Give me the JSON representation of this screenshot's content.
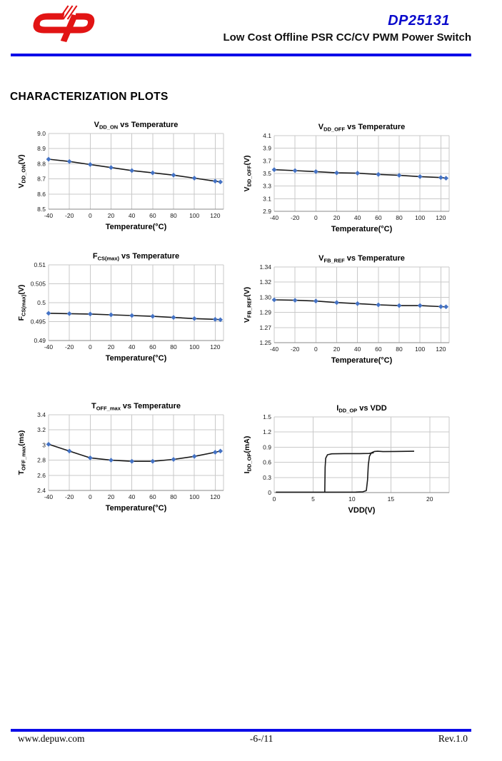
{
  "header": {
    "part_number": "DP25131",
    "subtitle": "Low Cost Offline PSR CC/CV PWM Power Switch",
    "brand_color": "#E21414",
    "accent_blue": "#0D0DE8",
    "part_number_color": "#0A0ACC"
  },
  "section_title": "CHARACTERIZATION PLOTS",
  "footer": {
    "website": "www.depuw.com",
    "page": "-6-/11",
    "revision": "Rev.1.0"
  },
  "chart_style": {
    "marker_color": "#4472C4",
    "line_color": "#1a1a1a",
    "grid_color": "#c9c9c9",
    "axis_color": "#8a8a8a",
    "tick_color": "#1a1a1a"
  },
  "chart_data": [
    {
      "id": "vdd_on",
      "type": "line",
      "name": "VDD_ON vs Temperature",
      "title": [
        {
          "t": "V",
          "s": 0
        },
        {
          "t": "DD_ON",
          "s": 1
        },
        {
          "t": " vs Temperature",
          "s": 0
        }
      ],
      "ylabel": [
        {
          "t": "V",
          "s": 0
        },
        {
          "t": "DD_ON",
          "s": 1
        },
        {
          "t": "(V)",
          "s": 0
        }
      ],
      "xlabel": "Temperature(°C)",
      "xlim": [
        -40,
        128
      ],
      "xticks": [
        -40,
        -20,
        0,
        20,
        40,
        60,
        80,
        100,
        120
      ],
      "ytick_values": [
        8.5,
        8.6,
        8.7,
        8.8,
        8.9,
        9.0
      ],
      "ytick_labels": [
        "8.5",
        "8.6",
        "8.7",
        "8.8",
        "8.9",
        "9.0"
      ],
      "series": [
        {
          "markers": true,
          "x": [
            -40,
            -20,
            0,
            20,
            40,
            60,
            80,
            100,
            120,
            125
          ],
          "y": [
            8.83,
            8.815,
            8.795,
            8.775,
            8.755,
            8.74,
            8.725,
            8.705,
            8.685,
            8.68
          ]
        }
      ]
    },
    {
      "id": "vdd_off",
      "type": "line",
      "name": "VDD_OFF vs Temperature",
      "title": [
        {
          "t": "V",
          "s": 0
        },
        {
          "t": "DD_OFF",
          "s": 1
        },
        {
          "t": " vs Temperature",
          "s": 0
        }
      ],
      "ylabel": [
        {
          "t": "V",
          "s": 0
        },
        {
          "t": "DD_OFF",
          "s": 1
        },
        {
          "t": "(V)",
          "s": 0
        }
      ],
      "xlabel": "Temperature(°C)",
      "xlim": [
        -40,
        128
      ],
      "xticks": [
        -40,
        -20,
        0,
        20,
        40,
        60,
        80,
        100,
        120
      ],
      "ytick_values": [
        2.9,
        3.1,
        3.3,
        3.5,
        3.7,
        3.9,
        4.1
      ],
      "ytick_labels": [
        "2.9",
        "3.1",
        "3.3",
        "3.5",
        "3.7",
        "3.9",
        "4.1"
      ],
      "series": [
        {
          "markers": true,
          "x": [
            -40,
            -20,
            0,
            20,
            40,
            60,
            80,
            100,
            120,
            125
          ],
          "y": [
            3.56,
            3.545,
            3.53,
            3.51,
            3.505,
            3.485,
            3.47,
            3.45,
            3.435,
            3.425
          ]
        }
      ]
    },
    {
      "id": "fcs_max",
      "type": "line",
      "name": "FCS(max) vs Temperature",
      "title": [
        {
          "t": "F",
          "s": 0
        },
        {
          "t": "CS(max)",
          "s": 1
        },
        {
          "t": " vs Temperature",
          "s": 0
        }
      ],
      "ylabel": [
        {
          "t": "F",
          "s": 0
        },
        {
          "t": "CS(max)",
          "s": 1
        },
        {
          "t": "(V)",
          "s": 0
        }
      ],
      "xlabel": "Temperature(°C)",
      "xlim": [
        -40,
        128
      ],
      "xticks": [
        -40,
        -20,
        0,
        20,
        40,
        60,
        80,
        100,
        120
      ],
      "ytick_values": [
        0.49,
        0.495,
        0.5,
        0.505,
        0.51
      ],
      "ytick_labels": [
        "0.49",
        "0.495",
        "0.5",
        "0.505",
        "0.51"
      ],
      "series": [
        {
          "markers": true,
          "x": [
            -40,
            -20,
            0,
            20,
            40,
            60,
            80,
            100,
            120,
            125
          ],
          "y": [
            0.4972,
            0.4971,
            0.497,
            0.4968,
            0.4966,
            0.4964,
            0.4961,
            0.4958,
            0.4956,
            0.4955
          ]
        }
      ]
    },
    {
      "id": "vfb_ref",
      "type": "line",
      "name": "VFB_REF vs Temperature",
      "title": [
        {
          "t": "V",
          "s": 0
        },
        {
          "t": "FB_REF",
          "s": 1
        },
        {
          "t": " vs Temperature",
          "s": 0
        }
      ],
      "ylabel": [
        {
          "t": "V",
          "s": 0
        },
        {
          "t": "FB_REF",
          "s": 1
        },
        {
          "t": "(V)",
          "s": 0
        }
      ],
      "xlabel": "Temperature(°C)",
      "xlim": [
        -40,
        128
      ],
      "xticks": [
        -40,
        -20,
        0,
        20,
        40,
        60,
        80,
        100,
        120
      ],
      "ytick_values": [
        1.25,
        1.27,
        1.29,
        1.3,
        1.32,
        1.34
      ],
      "ytick_labels": [
        "1.25",
        "1.27",
        "1.29",
        "1.30",
        "1.32",
        "1.34"
      ],
      "series": [
        {
          "markers": true,
          "x": [
            -40,
            -20,
            0,
            20,
            40,
            60,
            80,
            100,
            120,
            125
          ],
          "y": [
            1.2983,
            1.298,
            1.2975,
            1.2965,
            1.2958,
            1.295,
            1.2945,
            1.2945,
            1.2938,
            1.2937
          ]
        }
      ]
    },
    {
      "id": "toff_max",
      "type": "line",
      "name": "TOFF_max vs Temperature",
      "title": [
        {
          "t": "T",
          "s": 0
        },
        {
          "t": "OFF_max",
          "s": 1
        },
        {
          "t": " vs Temperature",
          "s": 0
        }
      ],
      "ylabel": [
        {
          "t": "T",
          "s": 0
        },
        {
          "t": "OFF_max",
          "s": 1
        },
        {
          "t": "(ms)",
          "s": 0
        }
      ],
      "xlabel": "Temperature(°C)",
      "xlim": [
        -40,
        128
      ],
      "xticks": [
        -40,
        -20,
        0,
        20,
        40,
        60,
        80,
        100,
        120
      ],
      "ytick_values": [
        2.4,
        2.6,
        2.8,
        3.0,
        3.2,
        3.4
      ],
      "ytick_labels": [
        "2.4",
        "2.6",
        "2.8",
        "3",
        "3.2",
        "3.4"
      ],
      "series": [
        {
          "markers": true,
          "x": [
            -40,
            -20,
            0,
            20,
            40,
            60,
            80,
            100,
            120,
            125
          ],
          "y": [
            3.01,
            2.92,
            2.83,
            2.8,
            2.785,
            2.785,
            2.81,
            2.85,
            2.905,
            2.92
          ]
        }
      ]
    },
    {
      "id": "idd_op",
      "type": "line",
      "name": "IDD_OP vs VDD",
      "title": [
        {
          "t": "I",
          "s": 0
        },
        {
          "t": "DD_OP",
          "s": 1
        },
        {
          "t": " vs VDD",
          "s": 0
        }
      ],
      "ylabel": [
        {
          "t": "I",
          "s": 0
        },
        {
          "t": "DD_OP",
          "s": 1
        },
        {
          "t": "(mA)",
          "s": 0
        }
      ],
      "xlabel": "VDD(V)",
      "xlim": [
        0,
        22.5
      ],
      "xticks": [
        0,
        5,
        10,
        15,
        20
      ],
      "ytick_values": [
        0,
        0.3,
        0.6,
        0.9,
        1.2,
        1.5
      ],
      "ytick_labels": [
        "0",
        "0.3",
        "0.6",
        "0.9",
        "1.2",
        "1.5"
      ],
      "series": [
        {
          "markers": false,
          "points": [
            [
              6.5,
              0.005
            ],
            [
              6.55,
              0.5
            ],
            [
              6.62,
              0.68
            ],
            [
              6.85,
              0.75
            ],
            [
              7.4,
              0.768
            ],
            [
              9,
              0.772
            ],
            [
              11,
              0.773
            ],
            [
              12.2,
              0.776
            ],
            [
              12.8,
              0.79
            ]
          ]
        },
        {
          "markers": false,
          "points": [
            [
              0.2,
              0.008
            ],
            [
              6,
              0.008
            ],
            [
              10.5,
              0.01
            ],
            [
              11.4,
              0.015
            ],
            [
              11.85,
              0.04
            ],
            [
              12.0,
              0.25
            ],
            [
              12.1,
              0.55
            ],
            [
              12.25,
              0.72
            ],
            [
              12.5,
              0.79
            ],
            [
              12.9,
              0.815
            ],
            [
              13.3,
              0.82
            ],
            [
              14,
              0.812
            ],
            [
              15.5,
              0.815
            ],
            [
              18,
              0.82
            ]
          ]
        }
      ]
    }
  ]
}
